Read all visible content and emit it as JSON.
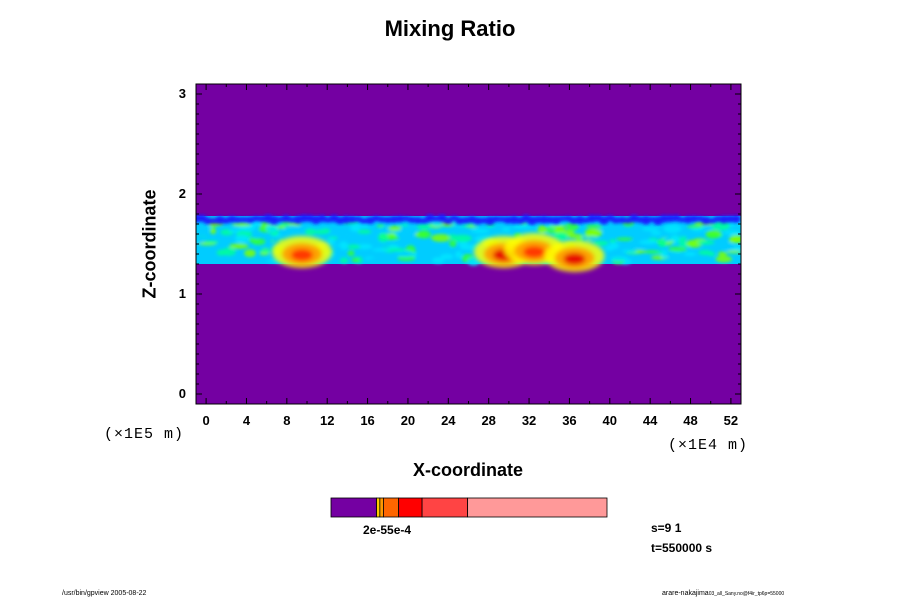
{
  "chart_data": {
    "type": "heatmap",
    "title": "Mixing Ratio",
    "xlabel": "X-coordinate",
    "ylabel": "Z-coordinate",
    "x_unit": "(×1E4 m)",
    "y_unit": "(×1E5 m)",
    "x_ticks": [
      "0",
      "4",
      "8",
      "12",
      "16",
      "20",
      "24",
      "28",
      "32",
      "36",
      "40",
      "44",
      "48",
      "52"
    ],
    "y_ticks": [
      "0",
      "1",
      "2",
      "3"
    ],
    "xlim": [
      -1,
      53
    ],
    "ylim": [
      -0.1,
      3.1
    ],
    "background_color": "#7400a2",
    "layer": {
      "z_bottom": 1.3,
      "z_top": 1.78,
      "top_edge_color": "#1a1aff",
      "body_colors": [
        "#00e6ff",
        "#00ccff",
        "#00ff99",
        "#33ff33",
        "#80ff00"
      ],
      "hotspots": [
        {
          "x": 9.5,
          "z": 1.42,
          "peak": "#ff3300"
        },
        {
          "x": 29.5,
          "z": 1.42,
          "peak": "#e60000"
        },
        {
          "x": 32.5,
          "z": 1.45,
          "peak": "#ff3300"
        },
        {
          "x": 36.5,
          "z": 1.38,
          "peak": "#e60000"
        }
      ]
    },
    "colorbar": {
      "colors": [
        "#7400a2",
        "#ffcc00",
        "#ff9900",
        "#ff6600",
        "#ff0000",
        "#ff4444",
        "#ff9999"
      ],
      "label": "2e-55e-4"
    }
  },
  "info": {
    "s_label": "s=9 1",
    "t_label": "t=550000 s"
  },
  "footer": {
    "left": "/usr/bin/gpview 2005-08-22",
    "right_main": "arare-nakajima",
    "right_small": "03_all_Sany.no@f4ir_tp6p=55000"
  }
}
